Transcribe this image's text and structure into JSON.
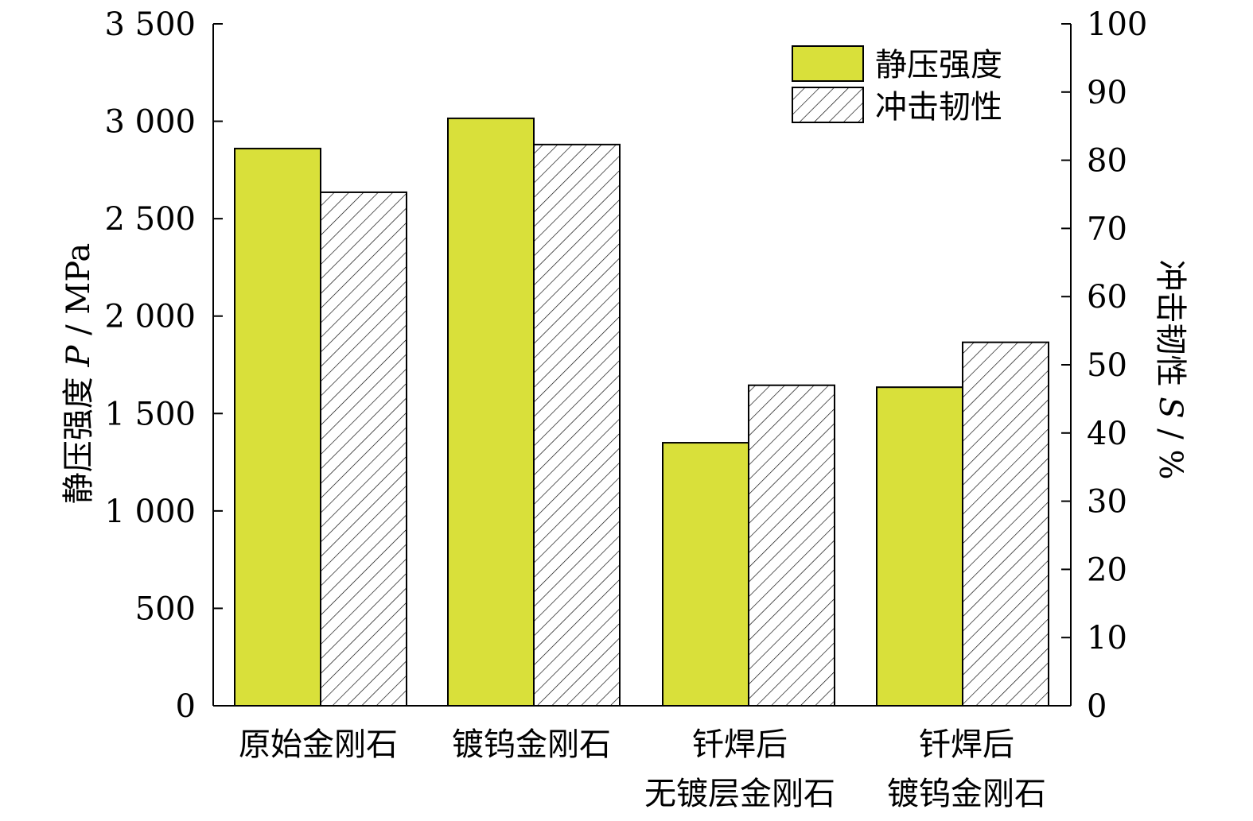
{
  "chart_data": {
    "type": "bar",
    "categories": [
      [
        "原始金刚石"
      ],
      [
        "镀钨金刚石"
      ],
      [
        "钎焊后",
        "无镀层金刚石"
      ],
      [
        "钎焊后",
        "镀钨金刚石"
      ]
    ],
    "series": [
      {
        "name": "静压强度",
        "axis": "left",
        "values": [
          2860,
          3015,
          1350,
          1635
        ],
        "color": "#d9e03a",
        "pattern": "solid"
      },
      {
        "name": "冲击韧性",
        "axis": "right",
        "values": [
          75.3,
          82.3,
          47.0,
          53.3
        ],
        "color": "#ffffff",
        "pattern": "hatched"
      }
    ],
    "left_axis": {
      "label_prefix": "静压强度 ",
      "label_symbol": "P",
      "label_suffix": " / MPa",
      "ylim": [
        0,
        3500
      ],
      "ticks": [
        0,
        500,
        1000,
        1500,
        2000,
        2500,
        3000,
        3500
      ],
      "tick_labels": [
        "0",
        "500",
        "1 000",
        "1 500",
        "2 000",
        "2 500",
        "3 000",
        "3 500"
      ]
    },
    "right_axis": {
      "label_prefix": "冲击韧性 ",
      "label_symbol": "S",
      "label_suffix": " / %",
      "ylim": [
        0,
        100
      ],
      "ticks": [
        0,
        10,
        20,
        30,
        40,
        50,
        60,
        70,
        80,
        90,
        100
      ],
      "tick_labels": [
        "0",
        "10",
        "20",
        "30",
        "40",
        "50",
        "60",
        "70",
        "80",
        "90",
        "100"
      ]
    },
    "legend": {
      "position": "top-right"
    },
    "grid": false
  }
}
